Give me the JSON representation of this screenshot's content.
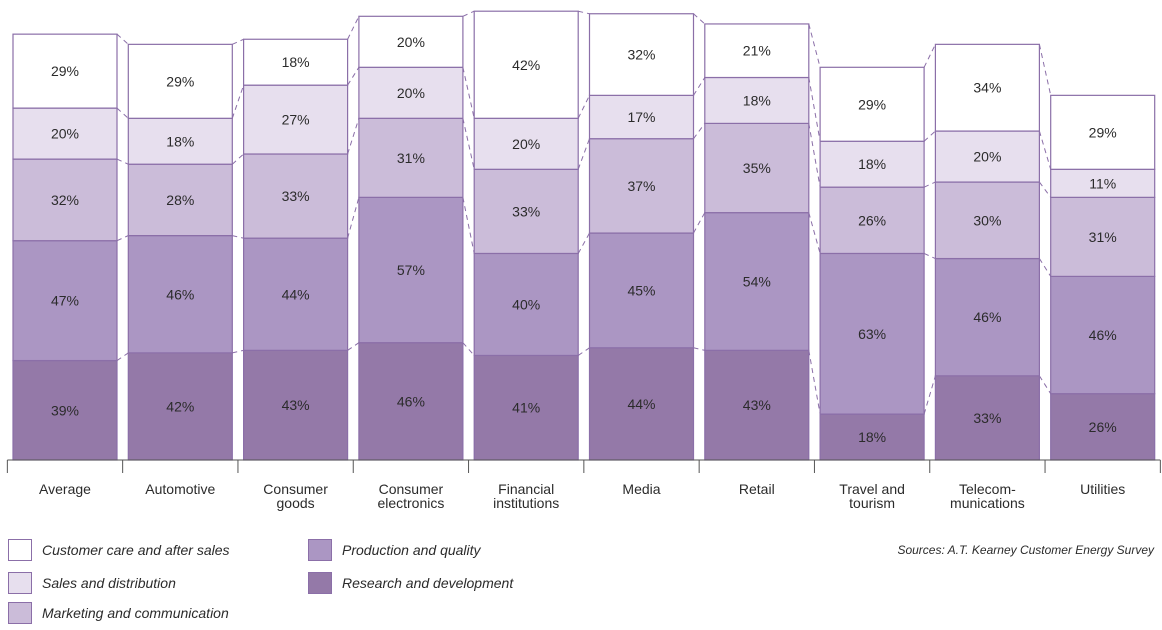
{
  "chart_data": {
    "type": "bar",
    "stacked": true,
    "title": "",
    "xlabel": "",
    "ylabel": "",
    "categories": [
      "Average",
      "Automotive",
      "Consumer goods",
      "Consumer electronics",
      "Financial institutions",
      "Media",
      "Retail",
      "Travel and tourism",
      "Telecom- munications",
      "Utilities"
    ],
    "category_lines": [
      [
        "Average"
      ],
      [
        "Automotive"
      ],
      [
        "Consumer",
        "goods"
      ],
      [
        "Consumer",
        "electronics"
      ],
      [
        "Financial",
        "institutions"
      ],
      [
        "Media"
      ],
      [
        "Retail"
      ],
      [
        "Travel and",
        "tourism"
      ],
      [
        "Telecom-",
        "munications"
      ],
      [
        "Utilities"
      ]
    ],
    "series": [
      {
        "name": "Research and development",
        "color": "#9479a8",
        "values": [
          39,
          42,
          43,
          46,
          41,
          44,
          43,
          18,
          33,
          26
        ]
      },
      {
        "name": "Production and quality",
        "color": "#ab96c3",
        "values": [
          47,
          46,
          44,
          57,
          40,
          45,
          54,
          63,
          46,
          46
        ]
      },
      {
        "name": "Marketing and communication",
        "color": "#cbbcd9",
        "values": [
          32,
          28,
          33,
          31,
          33,
          37,
          35,
          26,
          30,
          31
        ]
      },
      {
        "name": "Sales and distribution",
        "color": "#e7dfee",
        "values": [
          20,
          18,
          27,
          20,
          20,
          17,
          18,
          18,
          20,
          11
        ]
      },
      {
        "name": "Customer care and after sales",
        "color": "#ffffff",
        "values": [
          29,
          29,
          18,
          20,
          42,
          32,
          21,
          29,
          34,
          29
        ]
      }
    ],
    "legend_placement": "bottom-left",
    "grid": false,
    "connectors": "dashed"
  },
  "legend": {
    "items": [
      {
        "label": "Customer care and after sales",
        "color": "#ffffff"
      },
      {
        "label": "Sales and distribution",
        "color": "#e7dfee"
      },
      {
        "label": "Marketing and communication",
        "color": "#cbbcd9"
      },
      {
        "label": "Production and quality",
        "color": "#ab96c3"
      },
      {
        "label": "Research and development",
        "color": "#9479a8"
      }
    ],
    "source": "Sources: A.T. Kearney Customer Energy Survey"
  },
  "style": {
    "border_color": "#8b6fa8",
    "axis_color": "#555555",
    "connector_color": "#8b6fa8"
  }
}
